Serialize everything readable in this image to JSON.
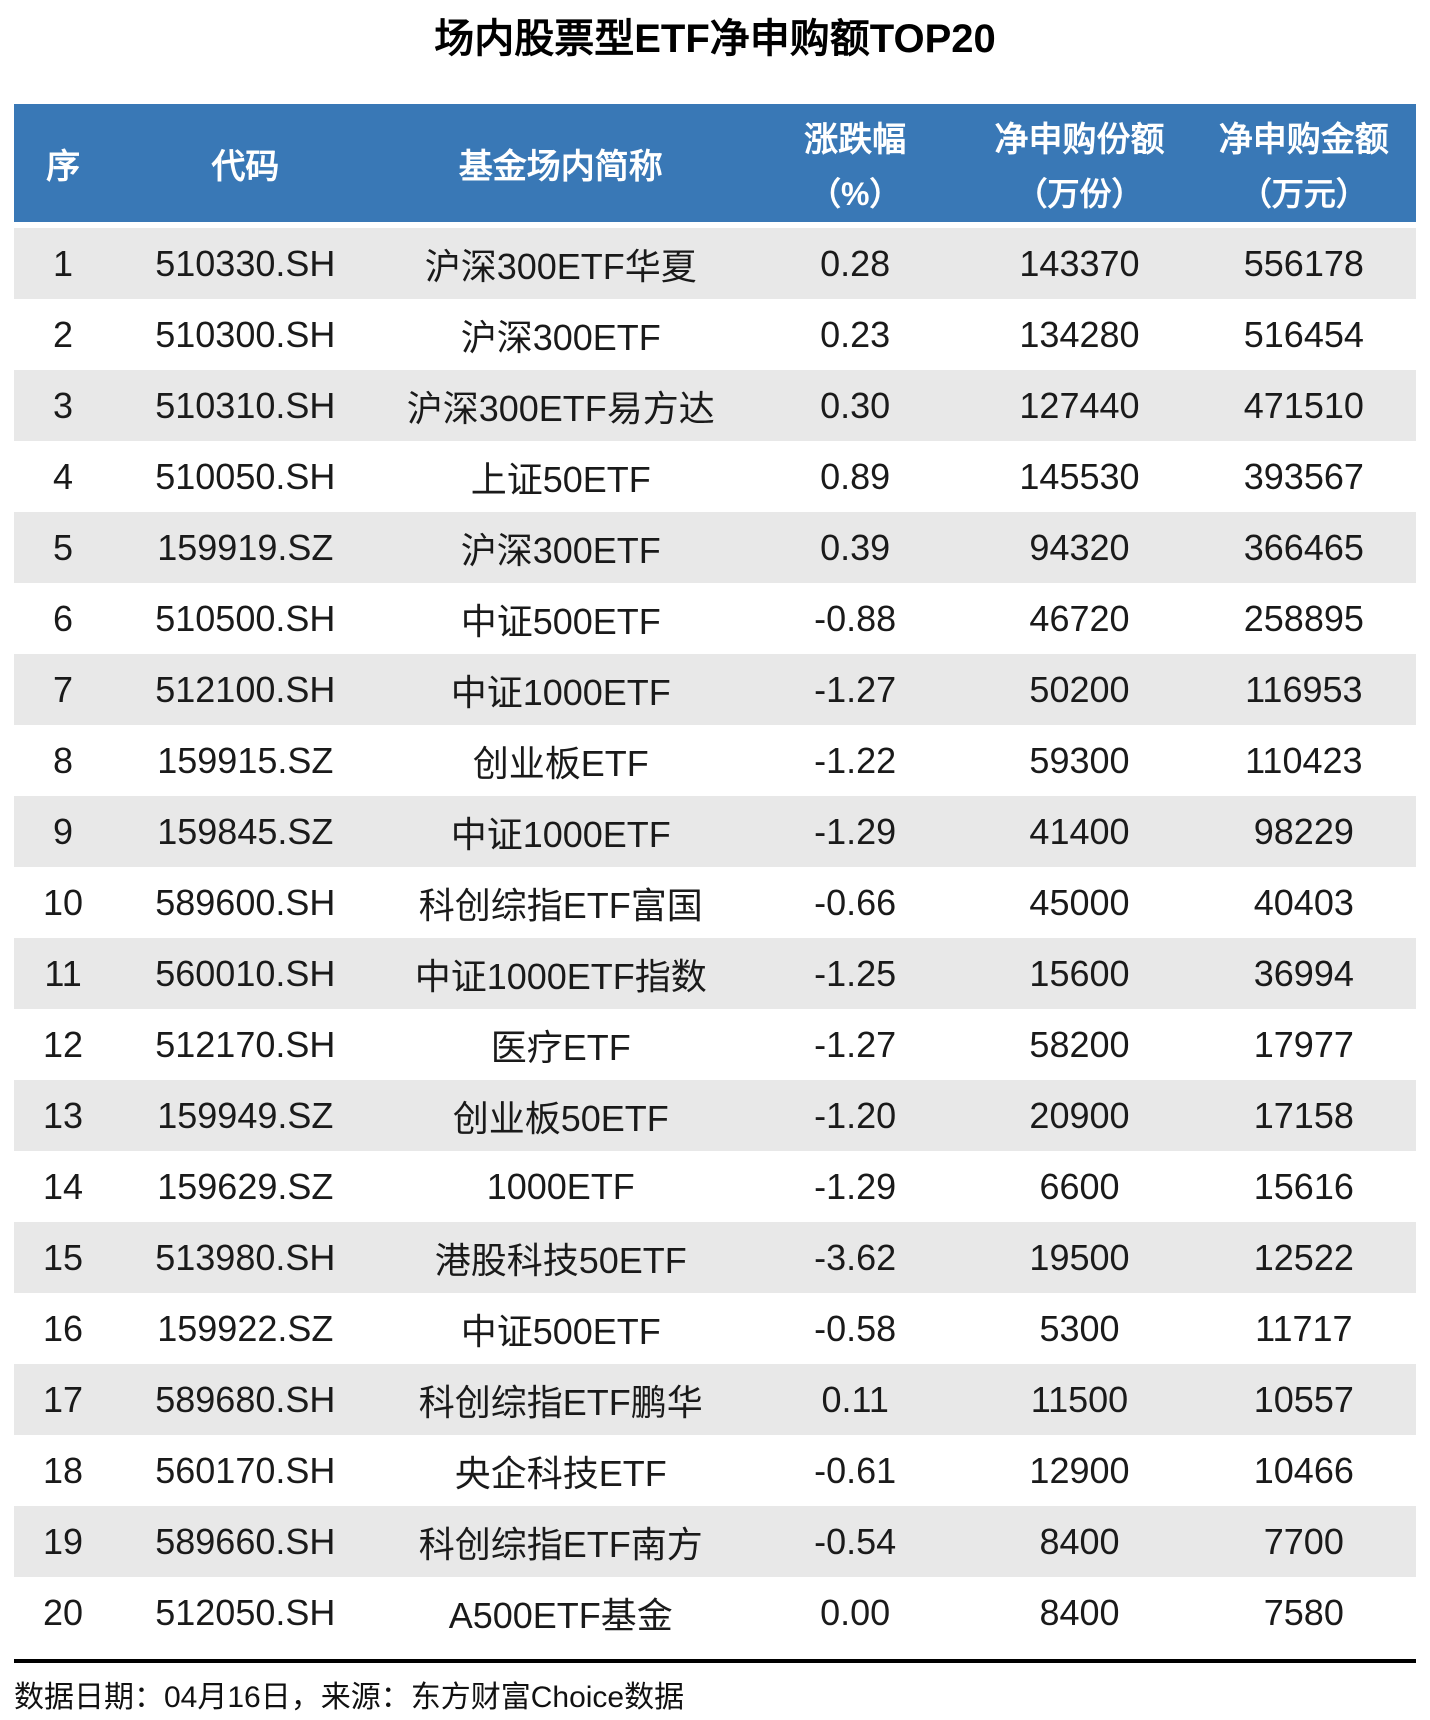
{
  "title": "场内股票型ETF净申购额TOP20",
  "colors": {
    "header_bg": "#3978B6",
    "header_text": "#FFFFFF",
    "row_alt_bg": "#E8E8E8",
    "body_text": "#1A1A1A",
    "divider": "#000000"
  },
  "header": {
    "col_seq": "序",
    "col_code": "代码",
    "col_name": "基金场内简称",
    "col_change_l1": "涨跌幅",
    "col_change_l2": "（%）",
    "col_shares_l1": "净申购份额",
    "col_shares_l2": "（万份）",
    "col_amount_l1": "净申购金额",
    "col_amount_l2": "（万元）"
  },
  "footer": {
    "source_text": "数据日期：04月16日，来源：东方财富Choice数据"
  },
  "chart_data": {
    "type": "table",
    "title": "场内股票型ETF净申购额TOP20",
    "columns": [
      "序",
      "代码",
      "基金场内简称",
      "涨跌幅（%）",
      "净申购份额（万份）",
      "净申购金额（万元）"
    ],
    "rows": [
      [
        1,
        "510330.SH",
        "沪深300ETF华夏",
        "0.28",
        143370,
        556178
      ],
      [
        2,
        "510300.SH",
        "沪深300ETF",
        "0.23",
        134280,
        516454
      ],
      [
        3,
        "510310.SH",
        "沪深300ETF易方达",
        "0.30",
        127440,
        471510
      ],
      [
        4,
        "510050.SH",
        "上证50ETF",
        "0.89",
        145530,
        393567
      ],
      [
        5,
        "159919.SZ",
        "沪深300ETF",
        "0.39",
        94320,
        366465
      ],
      [
        6,
        "510500.SH",
        "中证500ETF",
        "-0.88",
        46720,
        258895
      ],
      [
        7,
        "512100.SH",
        "中证1000ETF",
        "-1.27",
        50200,
        116953
      ],
      [
        8,
        "159915.SZ",
        "创业板ETF",
        "-1.22",
        59300,
        110423
      ],
      [
        9,
        "159845.SZ",
        "中证1000ETF",
        "-1.29",
        41400,
        98229
      ],
      [
        10,
        "589600.SH",
        "科创综指ETF富国",
        "-0.66",
        45000,
        40403
      ],
      [
        11,
        "560010.SH",
        "中证1000ETF指数",
        "-1.25",
        15600,
        36994
      ],
      [
        12,
        "512170.SH",
        "医疗ETF",
        "-1.27",
        58200,
        17977
      ],
      [
        13,
        "159949.SZ",
        "创业板50ETF",
        "-1.20",
        20900,
        17158
      ],
      [
        14,
        "159629.SZ",
        "1000ETF",
        "-1.29",
        6600,
        15616
      ],
      [
        15,
        "513980.SH",
        "港股科技50ETF",
        "-3.62",
        19500,
        12522
      ],
      [
        16,
        "159922.SZ",
        "中证500ETF",
        "-0.58",
        5300,
        11717
      ],
      [
        17,
        "589680.SH",
        "科创综指ETF鹏华",
        "0.11",
        11500,
        10557
      ],
      [
        18,
        "560170.SH",
        "央企科技ETF",
        "-0.61",
        12900,
        10466
      ],
      [
        19,
        "589660.SH",
        "科创综指ETF南方",
        "-0.54",
        8400,
        7700
      ],
      [
        20,
        "512050.SH",
        "A500ETF基金",
        "0.00",
        8400,
        7580
      ]
    ],
    "footnote": "数据日期：04月16日，来源：东方财富Choice数据"
  }
}
